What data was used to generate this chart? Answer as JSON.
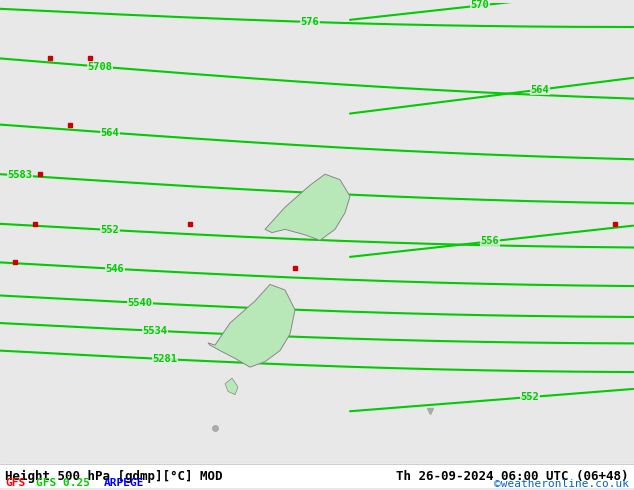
{
  "title": "Height 500 hPa [gdmp][°C] MOD",
  "datetime_str": "Th 26-09-2024 06:00 UTC (06+48)",
  "credit": "©weatheronline.co.uk",
  "legend_items": [
    {
      "label": "GFS",
      "color": "#ff0000"
    },
    {
      "label": "GFS 0.25",
      "color": "#00cc00"
    },
    {
      "label": "ARPEGE",
      "color": "#0000ff"
    }
  ],
  "bg_color": "#e8e8e8",
  "map_bg": "#e0e0e0",
  "land_color": "#c8c8c8",
  "nz_color": "#b8e8b8",
  "contour_color_green": "#00cc00",
  "contour_color_red": "#cc0000",
  "title_fontsize": 11,
  "label_fontsize": 8,
  "footer_fontsize": 9,
  "contour_labels": [
    "576",
    "5708",
    "564",
    "5583",
    "552",
    "546",
    "5540",
    "5534",
    "5281",
    "570",
    "564",
    "556",
    "552"
  ],
  "fig_width": 6.34,
  "fig_height": 4.9,
  "dpi": 100
}
